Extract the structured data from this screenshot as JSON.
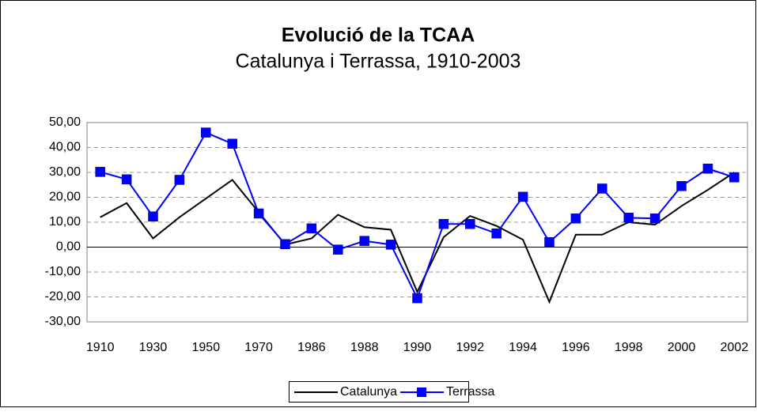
{
  "chart_data": {
    "type": "line",
    "title": "Evolució de la TCAA",
    "subtitle": "Catalunya i Terrassa, 1910-2003",
    "categories": [
      "1910",
      null,
      "1930",
      null,
      "1950",
      null,
      "1970",
      null,
      "1986",
      null,
      "1988",
      null,
      "1990",
      null,
      "1992",
      null,
      "1994",
      null,
      "1996",
      null,
      "1998",
      null,
      "2000",
      null,
      "2002"
    ],
    "series": [
      {
        "name": "Catalunya",
        "color": "#000000",
        "values": [
          12,
          17.7,
          3.5,
          12,
          19.5,
          27,
          14,
          1,
          3.5,
          13,
          8,
          7,
          -18,
          4,
          12.5,
          8.5,
          3,
          -22,
          5,
          5,
          10,
          9,
          16.5,
          23,
          30
        ]
      },
      {
        "name": "Terrassa",
        "color": "#0000ff",
        "values": [
          30.2,
          27.2,
          12.3,
          27,
          46,
          41.5,
          13.5,
          1.2,
          7.5,
          -1,
          2.5,
          1,
          -20.5,
          9.3,
          9.3,
          5.5,
          20.2,
          2,
          11.5,
          23.5,
          11.8,
          11.5,
          24.5,
          31.5,
          28
        ]
      }
    ],
    "ylim": [
      -30,
      50
    ],
    "yticks": [
      {
        "value": -30,
        "label": "-30,00"
      },
      {
        "value": -20,
        "label": "-20,00"
      },
      {
        "value": -10,
        "label": "-10,00"
      },
      {
        "value": 0,
        "label": "0,00"
      },
      {
        "value": 10,
        "label": "10,00"
      },
      {
        "value": 20,
        "label": "20,00"
      },
      {
        "value": 30,
        "label": "30,00"
      },
      {
        "value": 40,
        "label": "40,00"
      },
      {
        "value": 50,
        "label": "50,00"
      }
    ],
    "grid": true,
    "legend": "bottom"
  }
}
